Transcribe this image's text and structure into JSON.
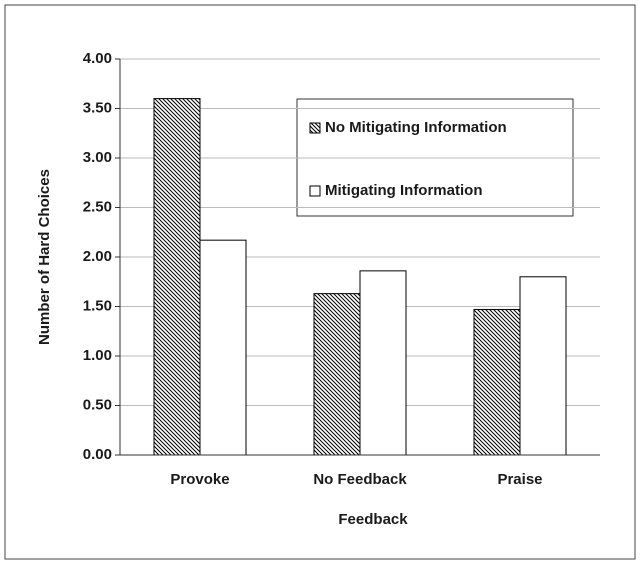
{
  "chart_data": {
    "type": "bar",
    "xlabel": "Feedback",
    "ylabel": "Number of Hard Choices",
    "categories": [
      "Provoke",
      "No Feedback",
      "Praise"
    ],
    "series": [
      {
        "name": "No Mitigating Information",
        "color": "#000000",
        "pattern": "hatch",
        "values": [
          3.6,
          1.63,
          1.47
        ]
      },
      {
        "name": "Mitigating Information",
        "color": "#000000",
        "pattern": "solid-white",
        "values": [
          2.17,
          1.86,
          1.8
        ]
      }
    ],
    "ylim": [
      0,
      4
    ],
    "yticks": [
      {
        "value": 0,
        "label": "0.00"
      },
      {
        "value": 0.5,
        "label": "0.50"
      },
      {
        "value": 1,
        "label": "1.00"
      },
      {
        "value": 1.5,
        "label": "1.50"
      },
      {
        "value": 2,
        "label": "2.00"
      },
      {
        "value": 2.5,
        "label": "2.50"
      },
      {
        "value": 3,
        "label": "3.00"
      },
      {
        "value": 3.5,
        "label": "3.50"
      },
      {
        "value": 4,
        "label": "4.00"
      }
    ],
    "grid": true
  }
}
